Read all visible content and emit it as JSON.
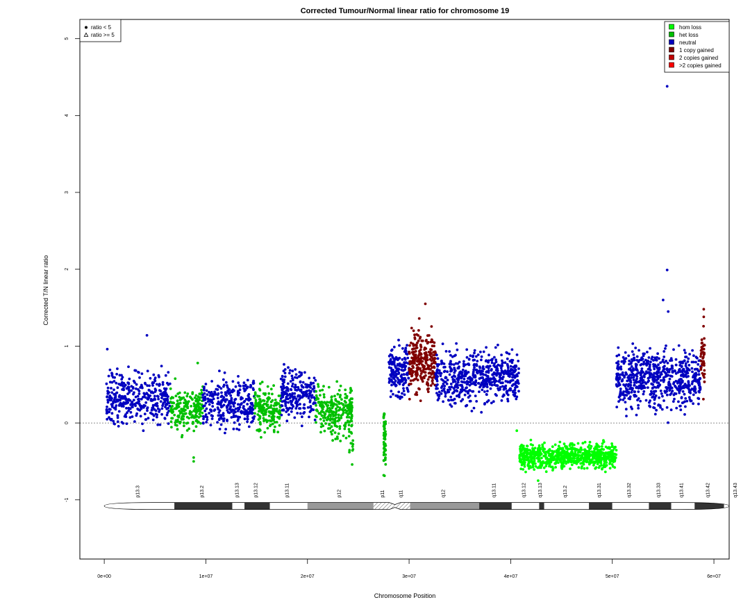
{
  "chart_data": {
    "type": "scatter",
    "title": "Corrected Tumour/Normal linear ratio for chromosome  19",
    "xlabel": "Chromosome Position",
    "ylabel": "Corrected T/N linear ratio",
    "xlim": [
      -2400000,
      61500000
    ],
    "ylim": [
      -1.77,
      5.25
    ],
    "x_ticks": [
      0,
      10000000,
      20000000,
      30000000,
      40000000,
      50000000,
      60000000
    ],
    "x_tick_labels": [
      "0e+00",
      "1e+07",
      "2e+07",
      "3e+07",
      "4e+07",
      "5e+07",
      "6e+07"
    ],
    "y_ticks": [
      -1,
      0,
      1,
      2,
      3,
      4,
      5
    ],
    "y_tick_labels": [
      "-1",
      "0",
      "1",
      "2",
      "3",
      "4",
      "5"
    ],
    "reference_line": 0,
    "shape_legend": {
      "placement": "top-left",
      "items": [
        {
          "symbol": "filled-circle",
          "label": "ratio < 5"
        },
        {
          "symbol": "open-triangle",
          "label": "ratio >= 5"
        }
      ]
    },
    "legend": {
      "placement": "top-right",
      "items": [
        {
          "label": "hom loss",
          "color": "#00ff00"
        },
        {
          "label": "het loss",
          "color": "#00c000"
        },
        {
          "label": "neutral",
          "color": "#0000c0"
        },
        {
          "label": "1 copy gained",
          "color": "#800000"
        },
        {
          "label": "2 copies gained",
          "color": "#c00000"
        },
        {
          "label": ">2 copies gained",
          "color": "#ff0000"
        }
      ]
    },
    "segments": [
      {
        "state": "neutral",
        "x_start": 200000,
        "x_end": 6500000,
        "mean": 0.33,
        "sd": 0.16,
        "n": 360
      },
      {
        "state": "het loss",
        "x_start": 6500000,
        "x_end": 9700000,
        "mean": 0.17,
        "sd": 0.15,
        "n": 200
      },
      {
        "state": "neutral",
        "x_start": 9700000,
        "x_end": 14800000,
        "mean": 0.27,
        "sd": 0.16,
        "n": 300
      },
      {
        "state": "het loss",
        "x_start": 14800000,
        "x_end": 17400000,
        "mean": 0.18,
        "sd": 0.14,
        "n": 170
      },
      {
        "state": "neutral",
        "x_start": 17400000,
        "x_end": 20800000,
        "mean": 0.36,
        "sd": 0.15,
        "n": 220
      },
      {
        "state": "het loss",
        "x_start": 20800000,
        "x_end": 24400000,
        "mean": 0.17,
        "sd": 0.15,
        "n": 240
      },
      {
        "state": "het loss",
        "x_start": 24000000,
        "x_end": 24500000,
        "mean": -0.25,
        "sd": 0.12,
        "n": 14
      },
      {
        "state": "het loss",
        "x_start": 27500000,
        "x_end": 27700000,
        "mean": -0.2,
        "sd": 0.22,
        "n": 50
      },
      {
        "state": "neutral",
        "x_start": 28000000,
        "x_end": 30000000,
        "mean": 0.68,
        "sd": 0.17,
        "n": 160
      },
      {
        "state": "1 copy gained",
        "x_start": 30000000,
        "x_end": 32600000,
        "mean": 0.8,
        "sd": 0.18,
        "n": 260
      },
      {
        "state": "neutral",
        "x_start": 32600000,
        "x_end": 40800000,
        "mean": 0.6,
        "sd": 0.17,
        "n": 560
      },
      {
        "state": "hom loss",
        "x_start": 40800000,
        "x_end": 50400000,
        "mean": -0.43,
        "sd": 0.08,
        "n": 750
      },
      {
        "state": "neutral",
        "x_start": 50400000,
        "x_end": 58700000,
        "mean": 0.58,
        "sd": 0.18,
        "n": 640
      },
      {
        "state": "1 copy gained",
        "x_start": 58700000,
        "x_end": 59100000,
        "mean": 0.85,
        "sd": 0.22,
        "n": 45
      }
    ],
    "outliers": [
      {
        "x": 55400000,
        "y": 4.38,
        "state": "neutral"
      },
      {
        "x": 55400000,
        "y": 1.99,
        "state": "neutral"
      },
      {
        "x": 55000000,
        "y": 1.6,
        "state": "neutral"
      },
      {
        "x": 55500000,
        "y": 1.45,
        "state": "neutral"
      },
      {
        "x": 4200000,
        "y": 1.14,
        "state": "neutral"
      },
      {
        "x": 300000,
        "y": 0.96,
        "state": "neutral"
      },
      {
        "x": 31600000,
        "y": 1.55,
        "state": "1 copy gained"
      },
      {
        "x": 31000000,
        "y": 1.36,
        "state": "1 copy gained"
      },
      {
        "x": 59000000,
        "y": 1.48,
        "state": "1 copy gained"
      },
      {
        "x": 59000000,
        "y": 1.38,
        "state": "1 copy gained"
      },
      {
        "x": 8800000,
        "y": -0.45,
        "state": "het loss"
      },
      {
        "x": 8800000,
        "y": -0.5,
        "state": "het loss"
      },
      {
        "x": 24400000,
        "y": -0.54,
        "state": "het loss"
      },
      {
        "x": 27500000,
        "y": -0.68,
        "state": "het loss"
      },
      {
        "x": 9200000,
        "y": 0.78,
        "state": "het loss"
      },
      {
        "x": 42700000,
        "y": -0.75,
        "state": "hom loss"
      },
      {
        "x": 40600000,
        "y": -0.1,
        "state": "hom loss"
      }
    ],
    "ideogram": {
      "y": -1.08,
      "start": 0,
      "end": 61500000,
      "bands": [
        {
          "name": "p13.3",
          "start": 0,
          "end": 6900000,
          "stain": "gneg"
        },
        {
          "name": "p13.2",
          "start": 6900000,
          "end": 12600000,
          "stain": "gpos"
        },
        {
          "name": "p13.13",
          "start": 12600000,
          "end": 13800000,
          "stain": "gneg"
        },
        {
          "name": "p13.12",
          "start": 13800000,
          "end": 16300000,
          "stain": "gpos"
        },
        {
          "name": "p13.11",
          "start": 16300000,
          "end": 20000000,
          "stain": "gneg"
        },
        {
          "name": "p12",
          "start": 20000000,
          "end": 26500000,
          "stain": "gvar"
        },
        {
          "name": "p11",
          "start": 26500000,
          "end": 28600000,
          "stain": "acen"
        },
        {
          "name": "q11",
          "start": 28600000,
          "end": 30100000,
          "stain": "acen"
        },
        {
          "name": "q12",
          "start": 30100000,
          "end": 36900000,
          "stain": "gvar"
        },
        {
          "name": "q13.11",
          "start": 36900000,
          "end": 40100000,
          "stain": "gpos"
        },
        {
          "name": "q13.12",
          "start": 40100000,
          "end": 42800000,
          "stain": "gneg"
        },
        {
          "name": "q13.13",
          "start": 42800000,
          "end": 43300000,
          "stain": "gpos"
        },
        {
          "name": "q13.2",
          "start": 43300000,
          "end": 47700000,
          "stain": "gneg"
        },
        {
          "name": "q13.31",
          "start": 47700000,
          "end": 50000000,
          "stain": "gpos"
        },
        {
          "name": "q13.32",
          "start": 50000000,
          "end": 53600000,
          "stain": "gneg"
        },
        {
          "name": "q13.33",
          "start": 53600000,
          "end": 55800000,
          "stain": "gpos"
        },
        {
          "name": "q13.41",
          "start": 55800000,
          "end": 58100000,
          "stain": "gneg"
        },
        {
          "name": "q13.42",
          "start": 58100000,
          "end": 61000000,
          "stain": "gpos"
        },
        {
          "name": "q13.43",
          "start": 61000000,
          "end": 63800000,
          "stain": "gneg"
        }
      ]
    },
    "grid": false
  }
}
